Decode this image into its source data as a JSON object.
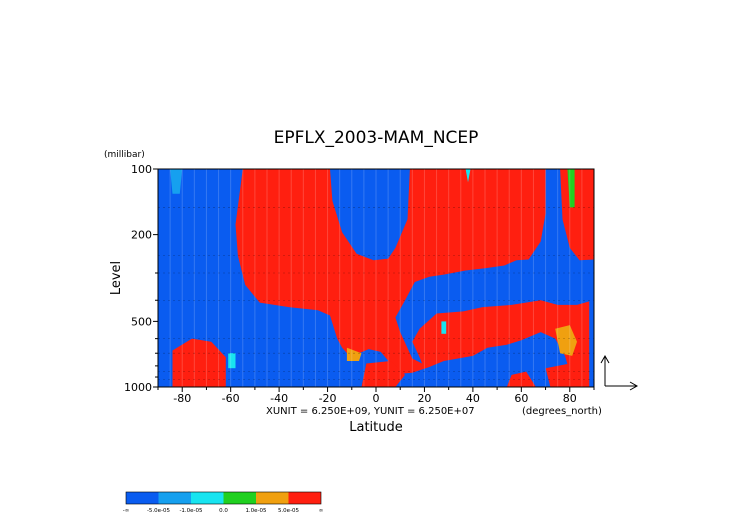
{
  "chart_data": {
    "type": "heatmap",
    "title": "EPFLX_2003-MAM_NCEP",
    "xlabel": "Latitude",
    "ylabel": "Level",
    "y_unit_label": "(millibar)",
    "x_unit_label": "(degrees_north)",
    "scale_note": "XUNIT = 6.250E+09, YUNIT = 6.250E+07",
    "xlim": [
      -90,
      90
    ],
    "ylim": [
      1000,
      100
    ],
    "y_scale": "log",
    "x_ticks": [
      -80,
      -60,
      -40,
      -20,
      0,
      20,
      40,
      60,
      80
    ],
    "x_tick_labels": [
      "-80",
      "-60",
      "-40",
      "-20",
      "0",
      "20",
      "40",
      "60",
      "80"
    ],
    "y_ticks": [
      100,
      200,
      500,
      1000
    ],
    "y_tick_labels": [
      "100",
      "200",
      "500",
      "1000"
    ],
    "color_levels": [
      {
        "label": "-∞",
        "color": "#0a5cf0"
      },
      {
        "label": "-5.0e-05",
        "color": "#16a0ef"
      },
      {
        "label": "-1.0e-05",
        "color": "#18e4f0"
      },
      {
        "label": "0.0",
        "color": "#20d020"
      },
      {
        "label": "1.0e-05",
        "color": "#f0a010"
      },
      {
        "label": "5.0e-05",
        "color": "#ff1f10"
      },
      {
        "label": "∞",
        "color": ""
      }
    ],
    "regions": [
      {
        "category": "strong-negative",
        "color": "#0a5cf0",
        "polygon": [
          [
            -90,
            100
          ],
          [
            90,
            100
          ],
          [
            90,
            1000
          ],
          [
            -90,
            1000
          ]
        ]
      },
      {
        "category": "strong-positive",
        "color": "#ff1f10",
        "polygon": [
          [
            -55,
            100
          ],
          [
            -19,
            100
          ],
          [
            -18,
            140
          ],
          [
            -14,
            195
          ],
          [
            -8,
            245
          ],
          [
            -1,
            262
          ],
          [
            5,
            258
          ],
          [
            8,
            230
          ],
          [
            13,
            170
          ],
          [
            14,
            100
          ],
          [
            70,
            100
          ],
          [
            70,
            160
          ],
          [
            68,
            215
          ],
          [
            63,
            260
          ],
          [
            58,
            262
          ],
          [
            53,
            277
          ],
          [
            45,
            285
          ],
          [
            37,
            292
          ],
          [
            28,
            305
          ],
          [
            22,
            312
          ],
          [
            16,
            330
          ],
          [
            12,
            400
          ],
          [
            8,
            480
          ],
          [
            10,
            560
          ],
          [
            15,
            740
          ],
          [
            19,
            780
          ],
          [
            18,
            730
          ],
          [
            15,
            620
          ],
          [
            18,
            540
          ],
          [
            25,
            460
          ],
          [
            36,
            450
          ],
          [
            44,
            430
          ],
          [
            56,
            420
          ],
          [
            68,
            400
          ],
          [
            75,
            420
          ],
          [
            83,
            420
          ],
          [
            88,
            405
          ],
          [
            88,
            1000
          ],
          [
            82,
            1000
          ],
          [
            78,
            720
          ],
          [
            74,
            600
          ],
          [
            68,
            560
          ],
          [
            60,
            610
          ],
          [
            54,
            640
          ],
          [
            46,
            660
          ],
          [
            40,
            720
          ],
          [
            28,
            760
          ],
          [
            22,
            810
          ],
          [
            15,
            860
          ],
          [
            10,
            870
          ],
          [
            6,
            780
          ],
          [
            2,
            690
          ],
          [
            -3,
            670
          ],
          [
            -7,
            700
          ],
          [
            -10,
            740
          ],
          [
            -14,
            660
          ],
          [
            -16,
            600
          ],
          [
            -19,
            470
          ],
          [
            -24,
            445
          ],
          [
            -36,
            430
          ],
          [
            -48,
            410
          ],
          [
            -54,
            340
          ],
          [
            -57,
            250
          ],
          [
            -58,
            180
          ]
        ]
      },
      {
        "category": "strong-positive",
        "color": "#ff1f10",
        "polygon": [
          [
            76,
            100
          ],
          [
            90,
            100
          ],
          [
            90,
            260
          ],
          [
            84,
            262
          ],
          [
            80,
            230
          ],
          [
            77,
            170
          ]
        ]
      },
      {
        "category": "strong-positive",
        "color": "#ff1f10",
        "polygon": [
          [
            -84,
            680
          ],
          [
            -76,
            600
          ],
          [
            -68,
            620
          ],
          [
            -62,
            730
          ],
          [
            -62,
            1000
          ],
          [
            -84,
            1000
          ]
        ]
      },
      {
        "category": "strong-positive",
        "color": "#ff1f10",
        "polygon": [
          [
            -4,
            780
          ],
          [
            6,
            760
          ],
          [
            12,
            880
          ],
          [
            8,
            1000
          ],
          [
            -6,
            1000
          ]
        ]
      },
      {
        "category": "strong-positive",
        "color": "#ff1f10",
        "polygon": [
          [
            56,
            880
          ],
          [
            62,
            850
          ],
          [
            66,
            1000
          ],
          [
            54,
            1000
          ]
        ]
      },
      {
        "category": "strong-positive",
        "color": "#ff1f10",
        "polygon": [
          [
            70,
            820
          ],
          [
            80,
            780
          ],
          [
            86,
            860
          ],
          [
            84,
            1000
          ],
          [
            72,
            1000
          ]
        ]
      },
      {
        "category": "moderate-positive",
        "color": "#f0a010",
        "polygon": [
          [
            -12,
            660
          ],
          [
            -6,
            700
          ],
          [
            -7,
            760
          ],
          [
            -12,
            760
          ]
        ]
      },
      {
        "category": "moderate-positive",
        "color": "#f0a010",
        "polygon": [
          [
            74,
            540
          ],
          [
            80,
            520
          ],
          [
            83,
            620
          ],
          [
            81,
            720
          ],
          [
            76,
            700
          ]
        ]
      },
      {
        "category": "weak-positive",
        "color": "#20d020",
        "polygon": [
          [
            79,
            100
          ],
          [
            82,
            100
          ],
          [
            82,
            150
          ],
          [
            80,
            150
          ]
        ]
      },
      {
        "category": "moderate-negative",
        "color": "#16a0ef",
        "polygon": [
          [
            -85,
            100
          ],
          [
            -80,
            100
          ],
          [
            -81,
            130
          ],
          [
            -84,
            130
          ]
        ]
      },
      {
        "category": "weak-negative",
        "color": "#18e4f0",
        "polygon": [
          [
            -61,
            700
          ],
          [
            -58,
            700
          ],
          [
            -58,
            820
          ],
          [
            -61,
            820
          ]
        ]
      },
      {
        "category": "weak-negative",
        "color": "#18e4f0",
        "polygon": [
          [
            27,
            500
          ],
          [
            29,
            500
          ],
          [
            29,
            570
          ],
          [
            27,
            570
          ]
        ]
      },
      {
        "category": "weak-negative",
        "color": "#18e4f0",
        "polygon": [
          [
            37,
            100
          ],
          [
            39,
            100
          ],
          [
            38,
            115
          ]
        ]
      }
    ]
  }
}
